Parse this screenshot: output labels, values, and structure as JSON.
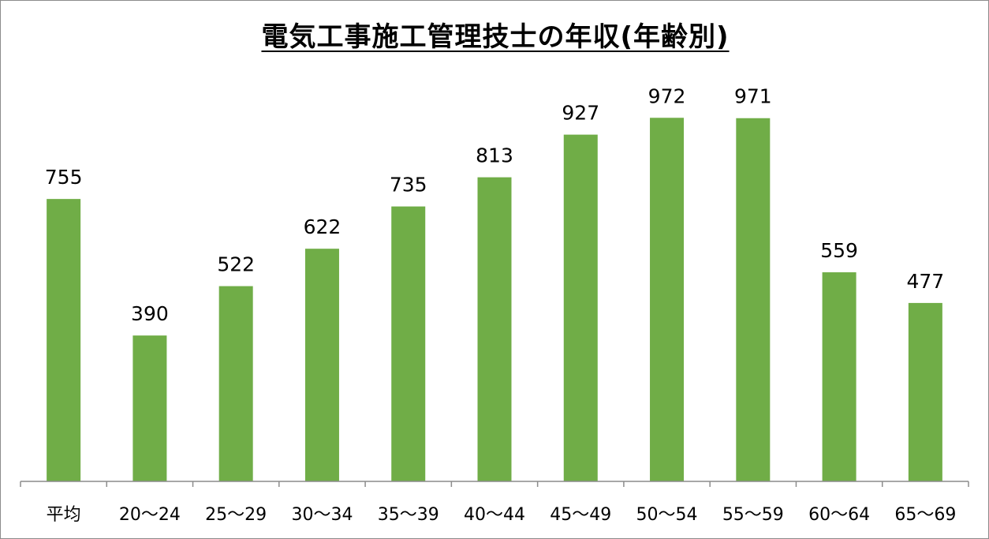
{
  "chart_data": {
    "type": "bar",
    "title": "電気工事施工管理技士の年収(年齢別)",
    "xlabel": "",
    "ylabel": "",
    "categories": [
      "平均",
      "20〜24",
      "25〜29",
      "30〜34",
      "35〜39",
      "40〜44",
      "45〜49",
      "50〜54",
      "55〜59",
      "60〜64",
      "65〜69"
    ],
    "values": [
      755,
      390,
      522,
      622,
      735,
      813,
      927,
      972,
      971,
      559,
      477
    ],
    "ylim": [
      0,
      1000
    ],
    "grid": false,
    "legend": "none",
    "bar_color": "#70ad47",
    "axis_color": "#8c8c8c"
  }
}
